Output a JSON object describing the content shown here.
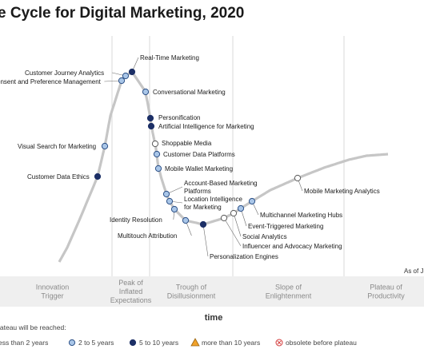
{
  "chart_data": {
    "type": "scatter",
    "title": "e Cycle for Digital Marketing, 2020",
    "xlabel": "time",
    "ylabel": "",
    "as_of": "As of J",
    "legend_title": "lateau will be reached:",
    "legend": [
      {
        "key": "less2",
        "label": "less than 2 years",
        "fill": "#ffffff",
        "stroke": "#5a5a5a",
        "shape": "circle"
      },
      {
        "key": "2to5",
        "label": "2 to 5 years",
        "fill": "#a9c6e8",
        "stroke": "#2b4f86",
        "shape": "circle"
      },
      {
        "key": "5to10",
        "label": "5 to 10 years",
        "fill": "#1c2f66",
        "stroke": "#1c2f66",
        "shape": "circle"
      },
      {
        "key": "more10",
        "label": "more than 10 years",
        "fill": "#f1a22a",
        "stroke": "#9a6410",
        "shape": "triangle"
      },
      {
        "key": "obsolete",
        "label": "obsolete before plateau",
        "fill": "#ffffff",
        "stroke": "#d33b3b",
        "shape": "xcircle"
      }
    ],
    "phases": [
      {
        "label": "Innovation Trigger",
        "lines": [
          "Innovation",
          "Trigger"
        ]
      },
      {
        "label": "Peak of Inflated Expectations",
        "lines": [
          "Peak of",
          "Inflated",
          "Expectations"
        ]
      },
      {
        "label": "Trough of Disillusionment",
        "lines": [
          "Trough of",
          "Disillusionment"
        ]
      },
      {
        "label": "Slope of Enlightenment",
        "lines": [
          "Slope of",
          "Enlightenment"
        ]
      },
      {
        "label": "Plateau of Productivity",
        "lines": [
          "Plateau of",
          "Productivity"
        ]
      }
    ],
    "points": [
      {
        "name": "Customer Data Ethics",
        "lines": [
          "Customer Data Ethics"
        ],
        "t": 0.14,
        "cat": "5to10",
        "side": "left"
      },
      {
        "name": "Visual Search for Marketing",
        "lines": [
          "Visual Search for Marketing"
        ],
        "t": 0.166,
        "cat": "2to5",
        "side": "left"
      },
      {
        "name": "Consent and Preference Management",
        "lines": [
          "onsent and Preference Management"
        ],
        "t": 0.246,
        "cat": "2to5",
        "side": "left"
      },
      {
        "name": "Customer Journey Analytics",
        "lines": [
          "Customer Journey Analytics"
        ],
        "t": 0.258,
        "cat": "2to5",
        "side": "left"
      },
      {
        "name": "Real-Time Marketing",
        "lines": [
          "Real-Time Marketing"
        ],
        "t": 0.282,
        "cat": "5to10",
        "side": "right"
      },
      {
        "name": "Conversational Marketing",
        "lines": [
          "Conversational Marketing"
        ],
        "t": 0.306,
        "cat": "2to5",
        "side": "right"
      },
      {
        "name": "Personification",
        "lines": [
          "Personification"
        ],
        "t": 0.317,
        "cat": "5to10",
        "side": "right"
      },
      {
        "name": "Artificial Intelligence for Marketing",
        "lines": [
          "Artificial Intelligence for Marketing"
        ],
        "t": 0.318,
        "cat": "5to10",
        "side": "right"
      },
      {
        "name": "Shoppable Media",
        "lines": [
          "Shoppable Media"
        ],
        "t": 0.324,
        "cat": "less2",
        "side": "right"
      },
      {
        "name": "Customer Data Platforms",
        "lines": [
          "Customer Data Platforms"
        ],
        "t": 0.327,
        "cat": "2to5",
        "side": "right"
      },
      {
        "name": "Mobile Wallet Marketing",
        "lines": [
          "Mobile Wallet Marketing"
        ],
        "t": 0.331,
        "cat": "2to5",
        "side": "right"
      },
      {
        "name": "Account-Based Marketing Platforms",
        "lines": [
          "Account-Based Marketing",
          "Platforms"
        ],
        "t": 0.343,
        "cat": "2to5",
        "side": "right"
      },
      {
        "name": "Location Intelligence for Marketing",
        "lines": [
          "Location Intelligence",
          "for Marketing"
        ],
        "t": 0.35,
        "cat": "2to5",
        "side": "right"
      },
      {
        "name": "Identity Resolution",
        "lines": [
          "Identity Resolution"
        ],
        "t": 0.358,
        "cat": "2to5",
        "side": "left"
      },
      {
        "name": "Multitouch Attribution",
        "lines": [
          "Multitouch Attribution"
        ],
        "t": 0.39,
        "cat": "2to5",
        "side": "left"
      },
      {
        "name": "Personalization Engines",
        "lines": [
          "Personalization Engines"
        ],
        "t": 0.43,
        "cat": "5to10",
        "side": "right"
      },
      {
        "name": "Influencer and Advocacy Marketing",
        "lines": [
          "Influencer and Advocacy Marketing"
        ],
        "t": 0.478,
        "cat": "less2",
        "side": "right"
      },
      {
        "name": "Social Analytics",
        "lines": [
          "Social Analytics"
        ],
        "t": 0.492,
        "cat": "less2",
        "side": "right"
      },
      {
        "name": "Event-Triggered Marketing",
        "lines": [
          "Event-Triggered Marketing"
        ],
        "t": 0.506,
        "cat": "2to5",
        "side": "right"
      },
      {
        "name": "Multichannel Marketing Hubs",
        "lines": [
          "Multichannel Marketing Hubs"
        ],
        "t": 0.525,
        "cat": "2to5",
        "side": "right"
      },
      {
        "name": "Mobile Marketing Analytics",
        "lines": [
          "Mobile Marketing Analytics"
        ],
        "t": 0.678,
        "cat": "less2",
        "side": "right"
      }
    ]
  }
}
